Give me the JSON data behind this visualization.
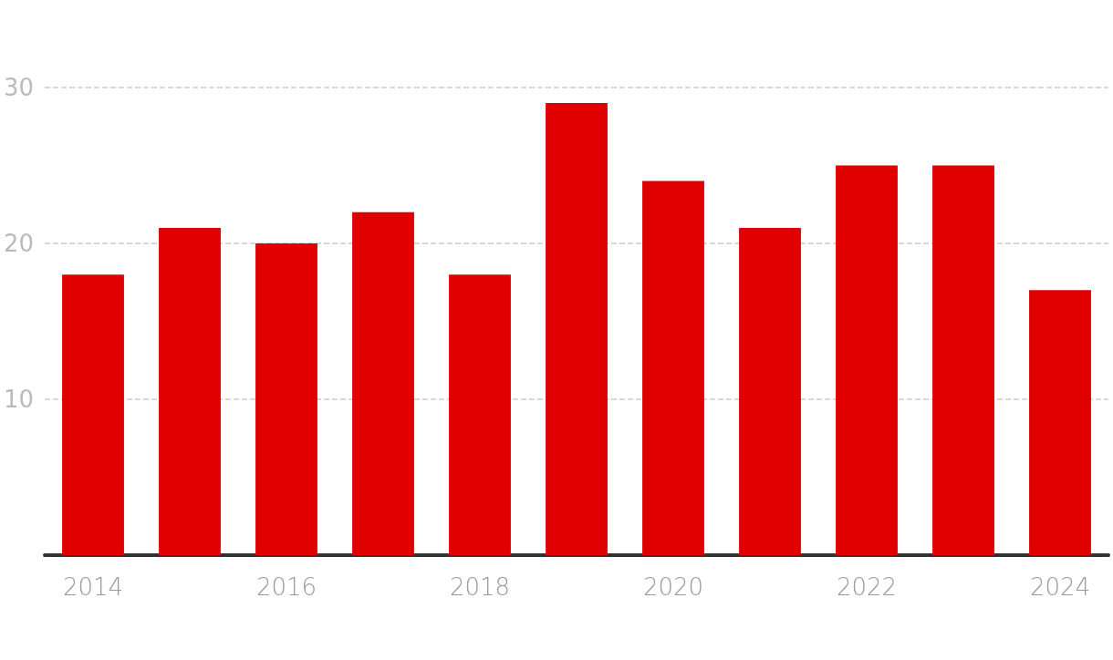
{
  "chart_data": {
    "type": "bar",
    "categories": [
      "2014",
      null,
      "2016",
      null,
      "2018",
      null,
      "2020",
      null,
      "2022",
      null,
      "2024"
    ],
    "values": [
      18,
      21,
      20,
      22,
      18,
      29,
      24,
      21,
      25,
      25,
      17
    ],
    "color": "#e00000",
    "ylim": [
      0,
      30
    ],
    "yticks": [
      10,
      20,
      30
    ],
    "grid": "y"
  }
}
